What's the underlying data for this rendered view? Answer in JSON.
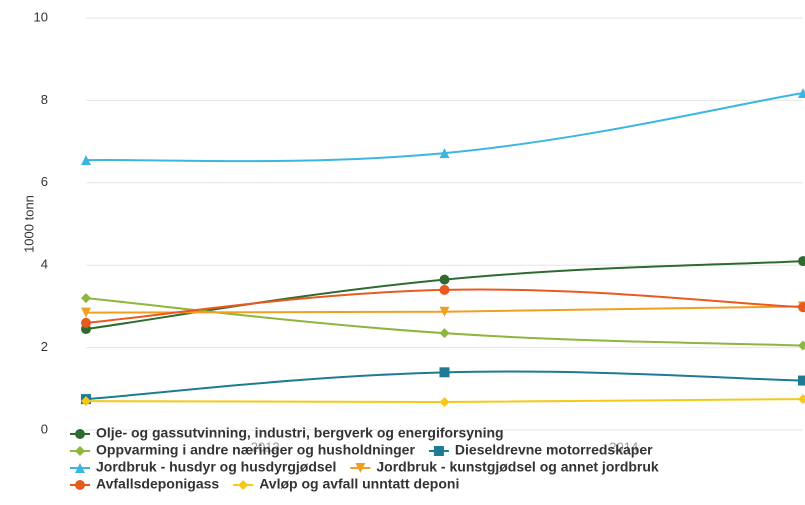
{
  "chart_data": {
    "type": "line",
    "y_label": "1000 tonn",
    "x": [
      0,
      1,
      2
    ],
    "xlim": [
      0,
      2
    ],
    "xticks": [
      {
        "value": 0.5,
        "label": "2013"
      },
      {
        "value": 1.5,
        "label": "2014"
      }
    ],
    "ylim": [
      0,
      10
    ],
    "yticks": [
      0,
      2,
      4,
      6,
      8,
      10
    ],
    "grid": true,
    "series": [
      {
        "name": "Olje- og gassutvinning, industri, bergverk og energiforsyning",
        "color": "#2e6b30",
        "marker": "circle",
        "values": [
          2.45,
          3.65,
          4.1
        ]
      },
      {
        "name": "Oppvarming i andre næringer og husholdninger",
        "color": "#8cb63c",
        "marker": "diamond",
        "values": [
          3.2,
          2.35,
          2.05
        ]
      },
      {
        "name": "Dieseldrevne motorredskaper",
        "color": "#1f7a94",
        "marker": "square",
        "values": [
          0.75,
          1.4,
          1.2
        ]
      },
      {
        "name": "Jordbruk - husdyr og husdyrgjødsel",
        "color": "#3bb6e0",
        "marker": "triangle",
        "values": [
          6.55,
          6.72,
          8.18
        ]
      },
      {
        "name": "Jordbruk - kunstgjødsel og annet jordbruk",
        "color": "#f0a020",
        "marker": "triangle-down",
        "values": [
          2.85,
          2.87,
          3.0
        ]
      },
      {
        "name": "Avfallsdeponigass",
        "color": "#e85a1e",
        "marker": "circle",
        "values": [
          2.6,
          3.4,
          2.98
        ]
      },
      {
        "name": "Avløp og avfall unntatt deponi",
        "color": "#f6c915",
        "marker": "diamond",
        "values": [
          0.7,
          0.68,
          0.75
        ]
      }
    ]
  }
}
